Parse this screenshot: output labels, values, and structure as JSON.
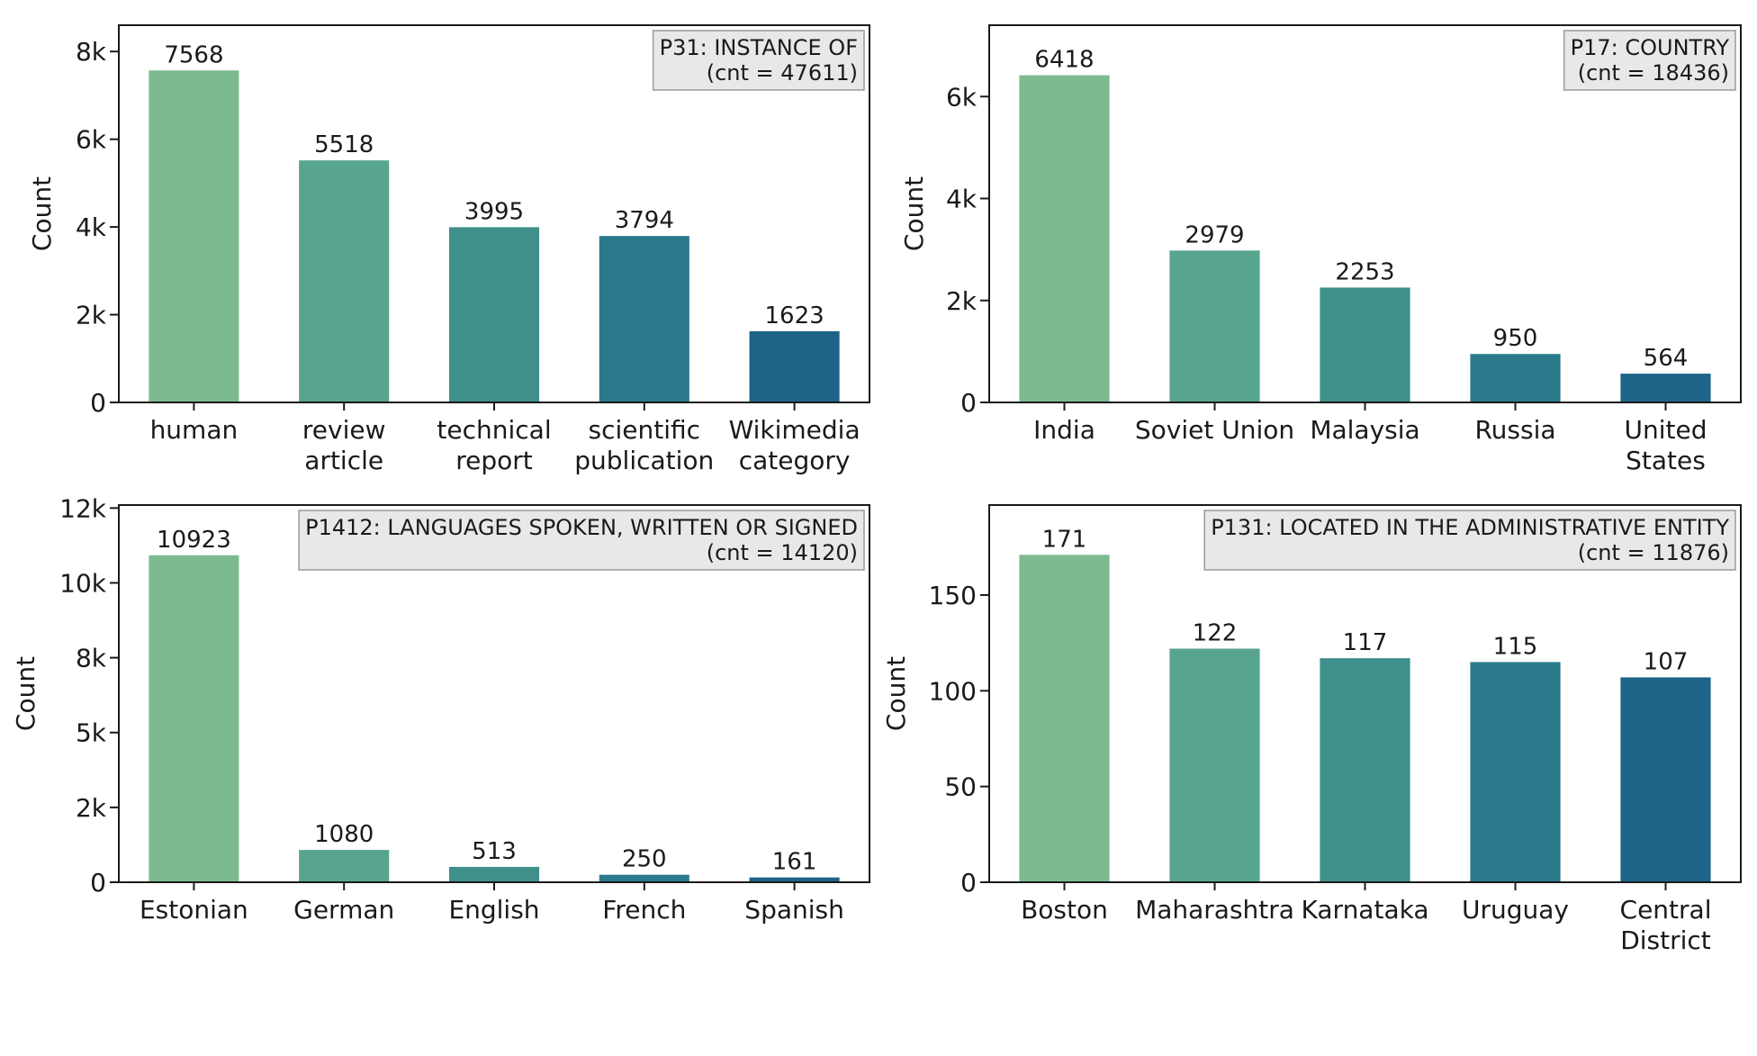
{
  "palette": [
    "#7eba90",
    "#58a58f",
    "#3f8f8b",
    "#2a7a8c",
    "#1e6488"
  ],
  "chart_data": [
    {
      "type": "bar",
      "badge": [
        "P31: INSTANCE OF",
        "(cnt = 47611)"
      ],
      "ylabel": "Count",
      "categories": [
        [
          "human"
        ],
        [
          "review",
          "article"
        ],
        [
          "technical",
          "report"
        ],
        [
          "scientific",
          "publication"
        ],
        [
          "Wikimedia",
          "category"
        ]
      ],
      "values": [
        7568,
        5518,
        3995,
        3794,
        1623
      ],
      "value_labels": [
        "7568",
        "5518",
        "3995",
        "3794",
        "1623"
      ],
      "ylim": [
        0,
        8600
      ],
      "yticks": [
        0,
        2000,
        4000,
        6000,
        8000
      ],
      "ytick_labels": [
        "0",
        "2k",
        "4k",
        "6k",
        "8k"
      ],
      "grid": false,
      "legend": "none"
    },
    {
      "type": "bar",
      "badge": [
        "P17: COUNTRY",
        "(cnt = 18436)"
      ],
      "ylabel": "Count",
      "categories": [
        [
          "India"
        ],
        [
          "Soviet Union"
        ],
        [
          "Malaysia"
        ],
        [
          "Russia"
        ],
        [
          "United",
          "States"
        ]
      ],
      "values": [
        6418,
        2979,
        2253,
        950,
        564
      ],
      "value_labels": [
        "6418",
        "2979",
        "2253",
        "950",
        "564"
      ],
      "ylim": [
        0,
        7400
      ],
      "yticks": [
        0,
        2000,
        4000,
        6000
      ],
      "ytick_labels": [
        "0",
        "2k",
        "4k",
        "6k"
      ],
      "grid": false,
      "legend": "none"
    },
    {
      "type": "bar",
      "badge": [
        "P1412: LANGUAGES SPOKEN, WRITTEN OR SIGNED",
        "(cnt = 14120)"
      ],
      "ylabel": "Count",
      "categories": [
        [
          "Estonian"
        ],
        [
          "German"
        ],
        [
          "English"
        ],
        [
          "French"
        ],
        [
          "Spanish"
        ]
      ],
      "values": [
        10923,
        1080,
        513,
        250,
        161
      ],
      "value_labels": [
        "10923",
        "1080",
        "513",
        "250",
        "161"
      ],
      "ylim": [
        0,
        12600
      ],
      "yticks": [
        0,
        2500,
        5000,
        7500,
        10000,
        12500
      ],
      "ytick_labels": [
        "0",
        "2k",
        "5k",
        "8k",
        "10k",
        "12k"
      ],
      "grid": false,
      "legend": "none"
    },
    {
      "type": "bar",
      "badge": [
        "P131: LOCATED IN THE ADMINISTRATIVE ENTITY",
        "(cnt = 11876)"
      ],
      "ylabel": "Count",
      "categories": [
        [
          "Boston"
        ],
        [
          "Maharashtra"
        ],
        [
          "Karnataka"
        ],
        [
          "Uruguay"
        ],
        [
          "Central",
          "District"
        ]
      ],
      "values": [
        171,
        122,
        117,
        115,
        107
      ],
      "value_labels": [
        "171",
        "122",
        "117",
        "115",
        "107"
      ],
      "ylim": [
        0,
        197
      ],
      "yticks": [
        0,
        50,
        100,
        150
      ],
      "ytick_labels": [
        "0",
        "50",
        "100",
        "150"
      ],
      "grid": false,
      "legend": "none"
    }
  ]
}
